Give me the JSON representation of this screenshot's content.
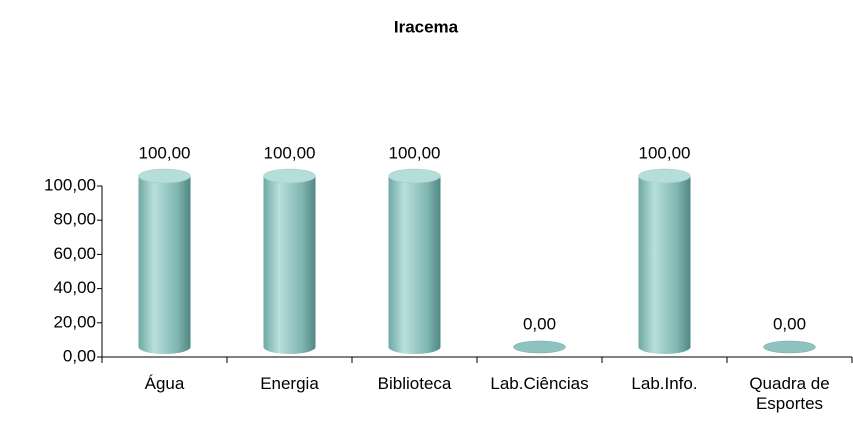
{
  "chart_data": {
    "type": "bar",
    "title": "Iracema",
    "categories": [
      "Água",
      "Energia",
      "Biblioteca",
      "Lab.Ciências",
      "Lab.Info.",
      "Quadra de Esportes"
    ],
    "values": [
      100,
      100,
      100,
      0,
      100,
      0
    ],
    "value_labels": [
      "100,00",
      "100,00",
      "100,00",
      "0,00",
      "100,00",
      "0,00"
    ],
    "color": "#8fc3c0",
    "ylim": [
      0,
      100
    ],
    "yticks": [
      {
        "value": 0,
        "label": "0,00"
      },
      {
        "value": 20,
        "label": "20,00"
      },
      {
        "value": 40,
        "label": "40,00"
      },
      {
        "value": 60,
        "label": "60,00"
      },
      {
        "value": 80,
        "label": "80,00"
      },
      {
        "value": 100,
        "label": "100,00"
      }
    ]
  }
}
